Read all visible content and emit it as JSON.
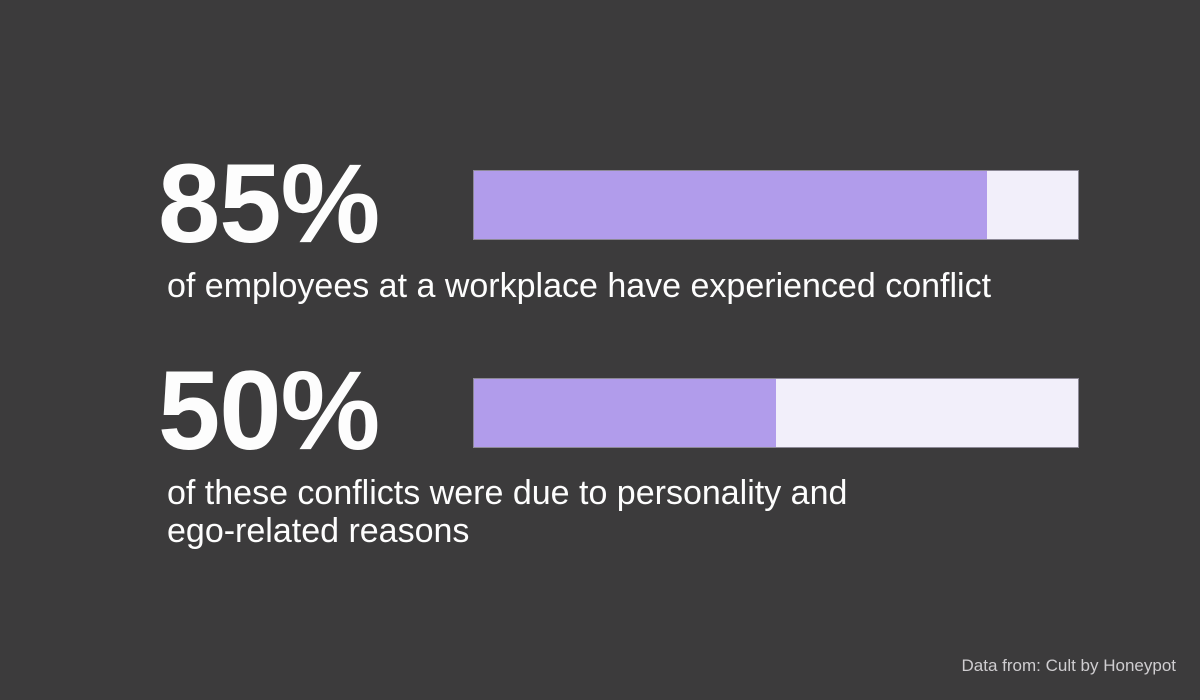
{
  "colors": {
    "background": "#3c3b3c",
    "bar_fill": "#b19ceb",
    "bar_track": "#f2effa",
    "bar_outline": "#8d8996",
    "text_primary": "#fdfdfd",
    "text_footer": "#cfcdd0"
  },
  "stats": [
    {
      "value_label": "85%",
      "percent": 85,
      "caption": "of employees at a workplace have experienced conflict"
    },
    {
      "value_label": "50%",
      "percent": 50,
      "caption": "of these conflicts were due to personality and\nego-related reasons"
    }
  ],
  "footer": {
    "source": "Data from: Cult by Honeypot"
  },
  "chart_data": {
    "type": "bar",
    "orientation": "horizontal",
    "categories": [
      "employees at a workplace who have experienced conflict",
      "conflicts due to personality and ego-related reasons"
    ],
    "values": [
      85,
      50
    ],
    "value_labels": [
      "85%",
      "50%"
    ],
    "xlim": [
      0,
      100
    ],
    "title": "",
    "xlabel": "",
    "ylabel": "",
    "grid": false,
    "legend": false,
    "source": "Data from: Cult by Honeypot",
    "bar_fill_color": "#b19ceb",
    "bar_track_color": "#f2effa"
  }
}
